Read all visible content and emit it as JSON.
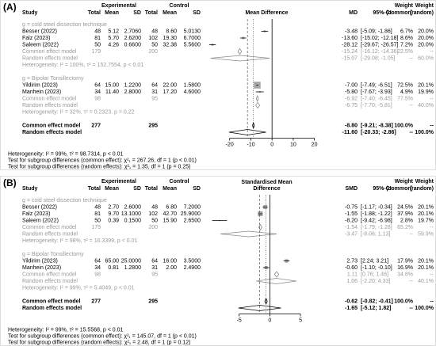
{
  "panels": [
    {
      "label": "(A)",
      "header": {
        "experimental": "Experimental",
        "control": "Control",
        "study": "Study",
        "e_total": "Total",
        "e_mean": "Mean",
        "e_sd": "SD",
        "c_total": "Total",
        "c_mean": "Mean",
        "c_sd": "SD",
        "plot": [
          "Mean Difference"
        ],
        "effect": "MD",
        "ci": "95%-CI",
        "w_common": [
          "Weight",
          "(common)"
        ],
        "w_random": [
          "Weight",
          "(random)"
        ]
      },
      "xlim": [
        -30,
        25
      ],
      "xticks": [
        -20,
        -10,
        0,
        10,
        20
      ],
      "groups": [
        {
          "label": "g = cold steel dissection technique",
          "studies": [
            {
              "name": "Besser (2022)",
              "e": [
                "48",
                "5.12",
                "2.7060"
              ],
              "c": [
                "48",
                "8.60",
                "5.0130"
              ],
              "est": -3.48,
              "est_label": "-3.48",
              "ci": [
                -5.09,
                -1.86
              ],
              "ci_label": "[-5.09; -1.86]",
              "w_common": 6.7,
              "w_common_label": "6.7%",
              "w_random_label": "20.0%"
            },
            {
              "name": "Falz (2023)",
              "e": [
                "81",
                "5.70",
                "2.6200"
              ],
              "c": [
                "102",
                "19.30",
                "6.7000"
              ],
              "est": -13.6,
              "est_label": "-13.60",
              "ci": [
                -15.02,
                -12.18
              ],
              "ci_label": "[-15.02; -12.18]",
              "w_common": 8.6,
              "w_common_label": "8.6%",
              "w_random_label": "20.0%"
            },
            {
              "name": "Saleem (2022)",
              "e": [
                "50",
                "4.26",
                "0.6600"
              ],
              "c": [
                "50",
                "32.38",
                "5.5600"
              ],
              "est": -28.12,
              "est_label": "-28.12",
              "ci": [
                -29.67,
                -26.57
              ],
              "ci_label": "[-29.67; -26.57]",
              "w_common": 7.2,
              "w_common_label": "7.2%",
              "w_random_label": "20.0%"
            }
          ],
          "common": {
            "name": "Common effect model",
            "e_total": "179",
            "c_total": "200",
            "est": -15.24,
            "est_label": "-15.24",
            "ci": [
              -16.12,
              -14.36
            ],
            "ci_label": "[-16.12; -14.36]",
            "w_common_label": "22.5%",
            "w_random_label": "--"
          },
          "random": {
            "name": "Random effects model",
            "est": -15.07,
            "est_label": "-15.07",
            "ci": [
              -29.08,
              -1.05
            ],
            "ci_label": "[-29.08; -1.05]",
            "w_common_label": "--",
            "w_random_label": "60.0%"
          },
          "heterogeneity": "Heterogeneity: I² = 100%, τ² = 152.7554, p < 0.01"
        },
        {
          "label": "g = Bipolar Tonsillectomy",
          "studies": [
            {
              "name": "Yildirim (2023)",
              "e": [
                "64",
                "15.00",
                "1.2200"
              ],
              "c": [
                "64",
                "22.00",
                "1.5800"
              ],
              "est": -7.0,
              "est_label": "-7.00",
              "ci": [
                -7.49,
                -6.51
              ],
              "ci_label": "[-7.49; -6.51]",
              "w_common": 72.5,
              "w_common_label": "72.5%",
              "w_random_label": "20.1%"
            },
            {
              "name": "Manhein (2023)",
              "e": [
                "34",
                "11.40",
                "2.8000"
              ],
              "c": [
                "31",
                "17.20",
                "4.6000"
              ],
              "est": -5.8,
              "est_label": "-5.80",
              "ci": [
                -7.67,
                -3.93
              ],
              "ci_label": "[-7.67; -3.93]",
              "w_common": 4.9,
              "w_common_label": "4.9%",
              "w_random_label": "19.9%"
            }
          ],
          "common": {
            "name": "Common effect model",
            "e_total": "98",
            "c_total": "95",
            "est": -6.92,
            "est_label": "-6.92",
            "ci": [
              -7.4,
              -6.45
            ],
            "ci_label": "[-7.40; -6.45]",
            "w_common_label": "77.5%",
            "w_random_label": "--"
          },
          "random": {
            "name": "Random effects model",
            "est": -6.75,
            "est_label": "-6.75",
            "ci": [
              -7.7,
              -5.81
            ],
            "ci_label": "[-7.70; -5.81]",
            "w_common_label": "--",
            "w_random_label": "40.0%"
          },
          "heterogeneity": "Heterogeneity: I² = 32%, τ² = 0.2323, p = 0.22"
        }
      ],
      "overall": {
        "common": {
          "name": "Common effect model",
          "e_total": "277",
          "c_total": "295",
          "est": -8.8,
          "est_label": "-8.80",
          "ci": [
            -9.21,
            -8.38
          ],
          "ci_label": "[-9.21; -8.38]",
          "w_common_label": "100.0%",
          "w_random_label": "--"
        },
        "random": {
          "name": "Random effects model",
          "est": -11.6,
          "est_label": "-11.60",
          "ci": [
            -20.33,
            -2.86
          ],
          "ci_label": "[-20.33; -2.86]",
          "w_common_label": "--",
          "w_random_label": "100.0%"
        },
        "heterogeneity": "Heterogeneity: I² = 99%, τ² = 98.7314, p < 0.01",
        "tests": [
          "Test for subgroup differences (common effect): χ²₁ = 267.26, df = 1 (p < 0.01)",
          "Test for subgroup differences (random effects): χ²₁ = 1.35, df = 1 (p = 0.25)"
        ]
      }
    },
    {
      "label": "(B)",
      "header": {
        "experimental": "Experimental",
        "control": "Control",
        "study": "Study",
        "e_total": "Total",
        "e_mean": "Mean",
        "e_sd": "SD",
        "c_total": "Total",
        "c_mean": "Mean",
        "c_sd": "SD",
        "plot": [
          "Standardised Mean",
          "Difference"
        ],
        "effect": "SMD",
        "ci": "95%-CI",
        "w_common": [
          "Weight",
          "(common)"
        ],
        "w_random": [
          "Weight",
          "(random)"
        ]
      },
      "xlim": [
        -10,
        9
      ],
      "xticks": [
        -5,
        0,
        5
      ],
      "groups": [
        {
          "label": "g = cold steel dissection technique",
          "studies": [
            {
              "name": "Besser (2022)",
              "e": [
                "48",
                "2.70",
                "2.6000"
              ],
              "c": [
                "48",
                "6.80",
                "7.2000"
              ],
              "est": -0.75,
              "est_label": "-0.75",
              "ci": [
                -1.17,
                -0.34
              ],
              "ci_label": "[-1.17; -0.34]",
              "w_common": 24.5,
              "w_common_label": "24.5%",
              "w_random_label": "20.1%"
            },
            {
              "name": "Falz (2023)",
              "e": [
                "81",
                "9.70",
                "13.1000"
              ],
              "c": [
                "102",
                "42.70",
                "25.9000"
              ],
              "est": -1.55,
              "est_label": "-1.55",
              "ci": [
                -1.88,
                -1.22
              ],
              "ci_label": "[-1.88; -1.22]",
              "w_common": 37.9,
              "w_common_label": "37.9%",
              "w_random_label": "20.1%"
            },
            {
              "name": "Saleem (2022)",
              "e": [
                "50",
                "0.39",
                "0.1500"
              ],
              "c": [
                "50",
                "15.90",
                "2.6500"
              ],
              "est": -8.2,
              "est_label": "-8.20",
              "ci": [
                -9.42,
                -6.98
              ],
              "ci_label": "[-9.42; -6.98]",
              "w_common": 2.8,
              "w_common_label": "2.8%",
              "w_random_label": "19.7%"
            }
          ],
          "common": {
            "name": "Common effect model",
            "e_total": "179",
            "c_total": "200",
            "est": -1.54,
            "est_label": "-1.54",
            "ci": [
              -1.79,
              -1.28
            ],
            "ci_label": "[-1.79; -1.28]",
            "w_common_label": "65.2%",
            "w_random_label": "--"
          },
          "random": {
            "name": "Random effects model",
            "est": -3.47,
            "est_label": "-3.47",
            "ci": [
              -8.06,
              1.13
            ],
            "ci_label": "[-8.06; 1.13]",
            "w_common_label": "--",
            "w_random_label": "59.9%"
          },
          "heterogeneity": "Heterogeneity: I² = 98%, τ² = 16.3399, p < 0.01"
        },
        {
          "label": "g = Bipolar Tonsillectomy",
          "studies": [
            {
              "name": "Yildirim (2023)",
              "e": [
                "64",
                "65.00",
                "25.0000"
              ],
              "c": [
                "64",
                "16.00",
                "3.5000"
              ],
              "est": 2.73,
              "est_label": "2.73",
              "ci": [
                2.24,
                3.21
              ],
              "ci_label": "[2.24; 3.21]",
              "w_common": 17.9,
              "w_common_label": "17.9%",
              "w_random_label": "20.1%"
            },
            {
              "name": "Manhein (2023)",
              "e": [
                "34",
                "0.81",
                "1.2800"
              ],
              "c": [
                "31",
                "2.00",
                "2.4900"
              ],
              "est": -0.6,
              "est_label": "-0.60",
              "ci": [
                -1.1,
                -0.1
              ],
              "ci_label": "[-1.10; -0.10]",
              "w_common": 16.9,
              "w_common_label": "16.9%",
              "w_random_label": "20.1%"
            }
          ],
          "common": {
            "name": "Common effect model",
            "e_total": "98",
            "c_total": "95",
            "est": 1.11,
            "est_label": "1.11",
            "ci": [
              0.76,
              1.46
            ],
            "ci_label": "[0.76; 1.46]",
            "w_common_label": "34.8%",
            "w_random_label": "--"
          },
          "random": {
            "name": "Random effects model",
            "est": 1.06,
            "est_label": "1.06",
            "ci": [
              -2.2,
              4.33
            ],
            "ci_label": "[-2.20; 4.33]",
            "w_common_label": "--",
            "w_random_label": "40.1%"
          },
          "heterogeneity": "Heterogeneity: I² = 99%, τ² = 5.4049, p < 0.01"
        }
      ],
      "overall": {
        "common": {
          "name": "Common effect model",
          "e_total": "277",
          "c_total": "295",
          "est": -0.62,
          "est_label": "-0.62",
          "ci": [
            -0.82,
            -0.41
          ],
          "ci_label": "[-0.82; -0.41]",
          "w_common_label": "100.0%",
          "w_random_label": "--"
        },
        "random": {
          "name": "Random effects model",
          "est": -1.65,
          "est_label": "-1.65",
          "ci": [
            -5.12,
            1.82
          ],
          "ci_label": "[-5.12; 1.82]",
          "w_common_label": "--",
          "w_random_label": "100.0%"
        },
        "heterogeneity": "Heterogeneity: I² = 99%, τ² = 15.5568, p < 0.01",
        "tests": [
          "Test for subgroup differences (common effect): χ²₁ = 145.07, df = 1 (p < 0.01)",
          "Test for subgroup differences (random effects): χ²₁ = 2.48, df = 1 (p = 0.12)"
        ]
      }
    }
  ]
}
